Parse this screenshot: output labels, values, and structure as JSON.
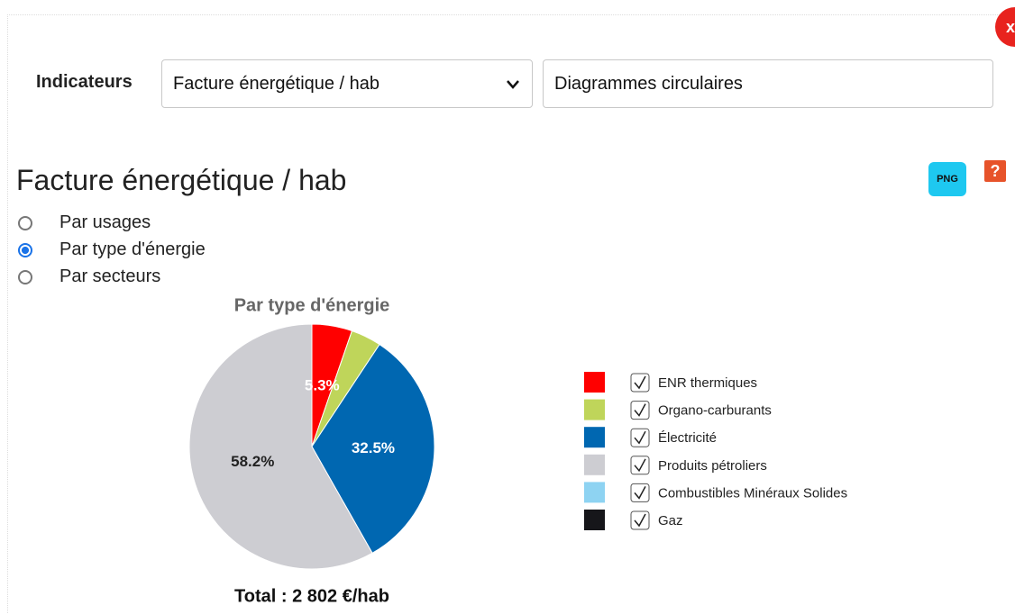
{
  "toolbar": {
    "label": "Indicateurs",
    "indicator": "Facture énergétique / hab",
    "view": "Diagrammes circulaires",
    "close": "x"
  },
  "heading": "Facture énergétique / hab",
  "buttons": {
    "png": "PNG",
    "help": "?"
  },
  "options": [
    "Par usages",
    "Par type d'énergie",
    "Par secteurs"
  ],
  "selected_option": 1,
  "chart_data": {
    "type": "pie",
    "title": "Par type d'énergie",
    "categories": [
      "ENR thermiques",
      "Organo-carburants",
      "Électricité",
      "Produits pétroliers",
      "Combustibles Minéraux Solides",
      "Gaz"
    ],
    "values": [
      5.3,
      4.0,
      32.5,
      58.2,
      0,
      0
    ],
    "value_labels": [
      "5.3%",
      null,
      "32.5%",
      "58.2%",
      null,
      null
    ],
    "colors": [
      "#ff0000",
      "#bfd55a",
      "#0067b1",
      "#cdcdd2",
      "#8ed3f2",
      "#16161a"
    ],
    "footer": "Total : 2 802 €/hab"
  }
}
